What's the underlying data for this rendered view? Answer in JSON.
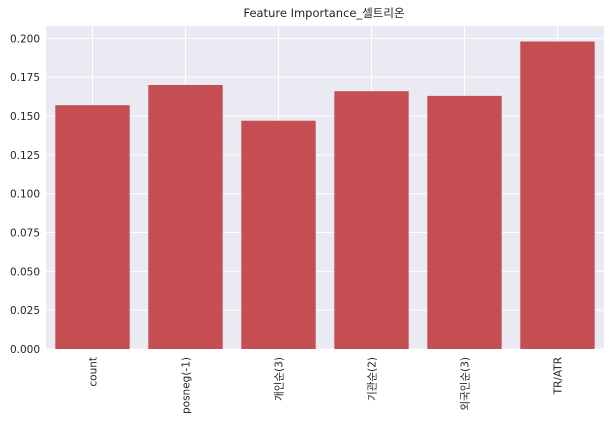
{
  "chart_data": {
    "type": "bar",
    "title": "Feature Importance_셀트리온",
    "xlabel": "",
    "ylabel": "",
    "categories": [
      "count",
      "posneg(-1)",
      "개인순(3)",
      "기관순(2)",
      "외국인순(3)",
      "TR/ATR"
    ],
    "values": [
      0.157,
      0.17,
      0.147,
      0.166,
      0.163,
      0.198
    ],
    "ylim": [
      0,
      0.208
    ],
    "yticks": [
      0.0,
      0.025,
      0.05,
      0.075,
      0.1,
      0.125,
      0.15,
      0.175,
      0.2
    ],
    "ytick_labels": [
      "0.000",
      "0.025",
      "0.050",
      "0.075",
      "0.100",
      "0.125",
      "0.150",
      "0.175",
      "0.200"
    ],
    "grid": true,
    "legend": "none",
    "colors": {
      "bar": "#c44e52",
      "plot_bg": "#eaeaf2",
      "grid": "#ffffff",
      "text": "#262626"
    }
  }
}
